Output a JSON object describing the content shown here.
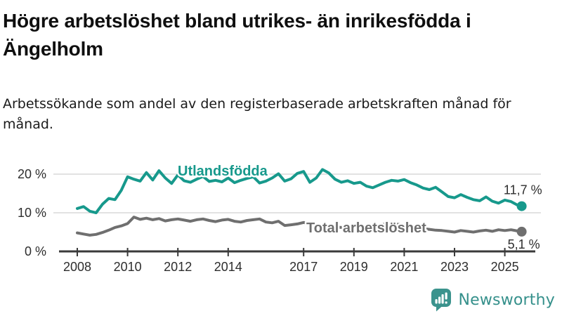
{
  "chart_data": {
    "type": "line",
    "title": "Högre arbetslöshet bland utrikes- än inrikesfödda i Ängelholm",
    "subtitle": "Arbetssökande som andel av den registerbaserade arbetskraften månad för månad.",
    "unit": "%",
    "xlim": [
      2008,
      2025.67
    ],
    "ylim": [
      0,
      22
    ],
    "grid": "horizontal-y",
    "axis_color": "#3A3A3A",
    "gridline_color": "#D9D9D9",
    "label_color": "#2D2D2D",
    "x": [
      2008,
      2008.25,
      2008.5,
      2008.75,
      2009,
      2009.25,
      2009.5,
      2009.75,
      2010,
      2010.25,
      2010.5,
      2010.75,
      2011,
      2011.25,
      2011.5,
      2011.75,
      2012,
      2012.25,
      2012.5,
      2012.75,
      2013,
      2013.25,
      2013.5,
      2013.75,
      2014,
      2014.25,
      2014.5,
      2014.75,
      2015,
      2015.25,
      2015.5,
      2015.75,
      2016,
      2016.25,
      2016.5,
      2016.75,
      2017,
      2017.25,
      2017.5,
      2017.75,
      2018,
      2018.25,
      2018.5,
      2018.75,
      2019,
      2019.25,
      2019.5,
      2019.75,
      2020,
      2020.25,
      2020.5,
      2020.75,
      2021,
      2021.25,
      2021.5,
      2021.75,
      2022,
      2022.25,
      2022.5,
      2022.75,
      2023,
      2023.25,
      2023.5,
      2023.75,
      2024,
      2024.25,
      2024.5,
      2024.75,
      2025,
      2025.25,
      2025.5,
      2025.67
    ],
    "series": [
      {
        "name": "Utlandsfödda",
        "color": "#17998C",
        "end_value_label": "11,7 %",
        "end_value": 11.7,
        "values": [
          11.1,
          11.6,
          10.4,
          10.0,
          12.2,
          13.7,
          13.4,
          15.8,
          19.3,
          18.7,
          18.2,
          20.4,
          18.5,
          20.9,
          19.0,
          17.6,
          19.8,
          18.3,
          17.9,
          18.7,
          19.4,
          18.1,
          18.4,
          18.0,
          19.0,
          17.8,
          18.4,
          18.9,
          19.3,
          17.7,
          18.2,
          19.0,
          20.1,
          18.2,
          18.8,
          20.2,
          20.7,
          17.9,
          19.0,
          21.2,
          20.3,
          18.7,
          17.9,
          18.3,
          17.6,
          17.9,
          16.9,
          16.5,
          17.2,
          17.9,
          18.4,
          18.2,
          18.6,
          17.8,
          17.2,
          16.4,
          16.0,
          16.6,
          15.4,
          14.2,
          13.9,
          14.7,
          14.0,
          13.4,
          13.1,
          14.1,
          13.0,
          12.5,
          13.3,
          12.9,
          12.0,
          11.7
        ]
      },
      {
        "name": "Total arbetslöshet",
        "color": "#6F6F6F",
        "end_value_label": "5,1 %",
        "end_value": 5.1,
        "values": [
          4.8,
          4.5,
          4.2,
          4.4,
          4.9,
          5.5,
          6.2,
          6.6,
          7.2,
          8.9,
          8.3,
          8.6,
          8.2,
          8.5,
          7.9,
          8.2,
          8.4,
          8.1,
          7.8,
          8.2,
          8.4,
          8.0,
          7.7,
          8.1,
          8.3,
          7.8,
          7.6,
          8.0,
          8.2,
          8.4,
          7.6,
          7.4,
          7.8,
          6.7,
          6.9,
          7.1,
          7.5,
          7.1,
          6.8,
          6.6,
          6.5,
          6.3,
          6.2,
          6.3,
          6.4,
          6.2,
          6.3,
          6.5,
          6.7,
          7.1,
          7.2,
          7.0,
          6.8,
          6.5,
          6.2,
          5.9,
          5.7,
          5.5,
          5.4,
          5.2,
          5.0,
          5.4,
          5.2,
          5.0,
          5.3,
          5.5,
          5.2,
          5.6,
          5.4,
          5.6,
          5.3,
          5.1
        ]
      }
    ],
    "yticks": [
      {
        "value": 0,
        "label": "0 %"
      },
      {
        "value": 10,
        "label": "10 %"
      },
      {
        "value": 20,
        "label": "20 %"
      }
    ],
    "xticks": [
      {
        "value": 2008,
        "label": "2008"
      },
      {
        "value": 2010,
        "label": "2010"
      },
      {
        "value": 2012,
        "label": "2012"
      },
      {
        "value": 2014,
        "label": "2014"
      },
      {
        "value": 2017,
        "label": "2017"
      },
      {
        "value": 2019,
        "label": "2019"
      },
      {
        "value": 2021,
        "label": "2021"
      },
      {
        "value": 2023,
        "label": "2023"
      },
      {
        "value": 2025,
        "label": "2025"
      }
    ]
  },
  "branding": {
    "name": "Newsworthy",
    "text_color": "#35908B",
    "mark_color": "#3B938D"
  }
}
